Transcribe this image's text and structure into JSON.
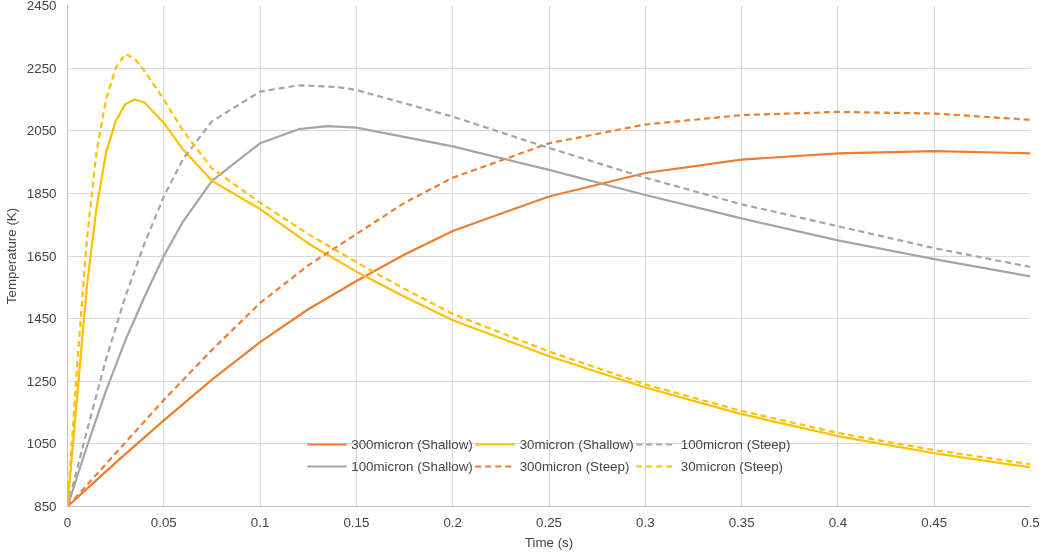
{
  "chart_data": {
    "type": "line",
    "xlabel": "Time (s)",
    "ylabel": "Temperature (K)",
    "xlim": [
      0,
      0.5
    ],
    "xticks": [
      0,
      0.05,
      0.1,
      0.15,
      0.2,
      0.25,
      0.3,
      0.35,
      0.4,
      0.45,
      0.5
    ],
    "ylim": [
      850,
      2450
    ],
    "yticks": [
      850,
      1050,
      1250,
      1450,
      1650,
      1850,
      2050,
      2250,
      2450
    ],
    "grid": true,
    "legend": "bottom",
    "marker": "none",
    "series": [
      {
        "name": "300micron (Shallow)",
        "color": "#ed7d31",
        "line_style": "solid",
        "x": [
          0,
          0.025,
          0.05,
          0.075,
          0.1,
          0.125,
          0.15,
          0.175,
          0.2,
          0.25,
          0.3,
          0.35,
          0.4,
          0.45,
          0.5
        ],
        "values": [
          850,
          990,
          1125,
          1255,
          1375,
          1480,
          1570,
          1655,
          1730,
          1840,
          1915,
          1958,
          1978,
          1985,
          1978
        ]
      },
      {
        "name": "100micron (Shallow)",
        "color": "#a5a5a5",
        "line_style": "solid",
        "x": [
          0,
          0.01,
          0.02,
          0.03,
          0.04,
          0.05,
          0.06,
          0.075,
          0.1,
          0.12,
          0.135,
          0.15,
          0.2,
          0.25,
          0.3,
          0.35,
          0.4,
          0.45,
          0.5
        ],
        "values": [
          850,
          1040,
          1220,
          1380,
          1520,
          1650,
          1760,
          1890,
          2010,
          2055,
          2065,
          2060,
          2000,
          1925,
          1845,
          1770,
          1700,
          1640,
          1585
        ]
      },
      {
        "name": "30micron (Shallow)",
        "color": "#ffc000",
        "line_style": "solid",
        "x": [
          0,
          0.005,
          0.01,
          0.015,
          0.02,
          0.025,
          0.03,
          0.035,
          0.04,
          0.05,
          0.06,
          0.075,
          0.1,
          0.125,
          0.15,
          0.175,
          0.2,
          0.25,
          0.3,
          0.35,
          0.4,
          0.45,
          0.5
        ],
        "values": [
          850,
          1200,
          1550,
          1800,
          1980,
          2080,
          2135,
          2150,
          2140,
          2075,
          1990,
          1890,
          1800,
          1690,
          1600,
          1520,
          1445,
          1330,
          1230,
          1145,
          1075,
          1020,
          975
        ]
      },
      {
        "name": "300micron (Steep)",
        "color": "#ed7d31",
        "line_style": "dashed",
        "x": [
          0,
          0.025,
          0.05,
          0.075,
          0.1,
          0.125,
          0.15,
          0.175,
          0.2,
          0.25,
          0.3,
          0.35,
          0.4,
          0.45,
          0.5
        ],
        "values": [
          850,
          1020,
          1190,
          1350,
          1500,
          1620,
          1720,
          1820,
          1900,
          2010,
          2070,
          2100,
          2110,
          2105,
          2085
        ]
      },
      {
        "name": "100micron (Steep)",
        "color": "#a5a5a5",
        "line_style": "dashed",
        "x": [
          0,
          0.01,
          0.02,
          0.03,
          0.04,
          0.05,
          0.06,
          0.075,
          0.1,
          0.12,
          0.14,
          0.15,
          0.2,
          0.25,
          0.3,
          0.35,
          0.4,
          0.45,
          0.5
        ],
        "values": [
          850,
          1090,
          1320,
          1520,
          1690,
          1840,
          1960,
          2080,
          2175,
          2195,
          2190,
          2180,
          2095,
          1995,
          1900,
          1815,
          1745,
          1675,
          1615
        ]
      },
      {
        "name": "30micron (Steep)",
        "color": "#ffc000",
        "line_style": "dashed",
        "x": [
          0,
          0.005,
          0.01,
          0.015,
          0.02,
          0.025,
          0.03,
          0.035,
          0.04,
          0.05,
          0.06,
          0.075,
          0.1,
          0.125,
          0.15,
          0.175,
          0.2,
          0.25,
          0.3,
          0.35,
          0.4,
          0.45,
          0.5
        ],
        "values": [
          850,
          1300,
          1700,
          1980,
          2150,
          2250,
          2295,
          2280,
          2240,
          2150,
          2050,
          1930,
          1820,
          1720,
          1630,
          1545,
          1465,
          1345,
          1240,
          1155,
          1085,
          1030,
          985
        ]
      }
    ]
  }
}
